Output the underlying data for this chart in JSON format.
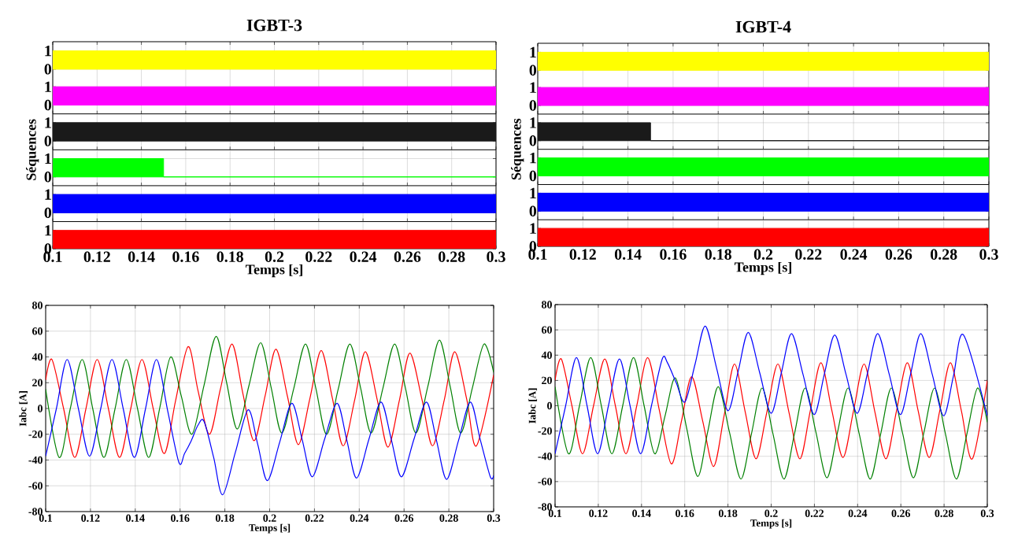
{
  "chart_data": [
    {
      "type": "area",
      "title": "IGBT-3",
      "xlim": [
        0.1,
        0.3
      ],
      "xticks": [
        0.1,
        0.12,
        0.14,
        0.16,
        0.18,
        0.2,
        0.22,
        0.24,
        0.26,
        0.28,
        0.3
      ],
      "ylim": [
        -0.48,
        1.5
      ],
      "yticks": [
        0,
        1
      ],
      "grid": true,
      "tick_labels": "y",
      "series": [
        {
          "color": "#ffff00",
          "x": [
            0.1,
            0.3
          ],
          "values": [
            1,
            1
          ]
        }
      ]
    },
    {
      "type": "area",
      "xlim": [
        0.1,
        0.3
      ],
      "xticks": [
        0.1,
        0.12,
        0.14,
        0.16,
        0.18,
        0.2,
        0.22,
        0.24,
        0.26,
        0.28,
        0.3
      ],
      "ylim": [
        -0.48,
        1.48
      ],
      "yticks": [
        0,
        1
      ],
      "grid": true,
      "tick_labels": "y",
      "series": [
        {
          "color": "#ff00ff",
          "x": [
            0.1,
            0.3
          ],
          "values": [
            1,
            1
          ]
        }
      ]
    },
    {
      "type": "area",
      "ylabel": "Séquences",
      "xlim": [
        0.1,
        0.3
      ],
      "xticks": [
        0.1,
        0.12,
        0.14,
        0.16,
        0.18,
        0.2,
        0.22,
        0.24,
        0.26,
        0.28,
        0.3
      ],
      "ylim": [
        -0.48,
        1.48
      ],
      "yticks": [
        0,
        1
      ],
      "grid": true,
      "tick_labels": "y",
      "series": [
        {
          "color": "#1a1a1a",
          "x": [
            0.1,
            0.3
          ],
          "values": [
            1,
            1
          ]
        }
      ]
    },
    {
      "type": "area",
      "xlim": [
        0.1,
        0.3
      ],
      "xticks": [
        0.1,
        0.12,
        0.14,
        0.16,
        0.18,
        0.2,
        0.22,
        0.24,
        0.26,
        0.28,
        0.3
      ],
      "ylim": [
        -0.48,
        1.48
      ],
      "yticks": [
        0,
        1
      ],
      "grid": true,
      "tick_labels": "y",
      "series": [
        {
          "color": "#00ff00",
          "x": [
            0.1,
            0.15,
            0.15,
            0.3
          ],
          "values": [
            1,
            1,
            0,
            0
          ]
        }
      ]
    },
    {
      "type": "area",
      "xlim": [
        0.1,
        0.3
      ],
      "xticks": [
        0.1,
        0.12,
        0.14,
        0.16,
        0.18,
        0.2,
        0.22,
        0.24,
        0.26,
        0.28,
        0.3
      ],
      "ylim": [
        -0.48,
        1.48
      ],
      "yticks": [
        0,
        1
      ],
      "grid": true,
      "tick_labels": "y",
      "series": [
        {
          "color": "#0000ff",
          "x": [
            0.1,
            0.3
          ],
          "values": [
            1,
            1
          ]
        }
      ]
    },
    {
      "type": "area",
      "xlabel": "Temps [s]",
      "xlim": [
        0.1,
        0.3
      ],
      "xticks": [
        0.1,
        0.12,
        0.14,
        0.16,
        0.18,
        0.2,
        0.22,
        0.24,
        0.26,
        0.28,
        0.3
      ],
      "ylim": [
        0,
        1.48
      ],
      "yticks": [
        0,
        1
      ],
      "grid": true,
      "series": [
        {
          "color": "#ff0000",
          "x": [
            0.1,
            0.3
          ],
          "values": [
            1,
            1
          ]
        }
      ]
    },
    {
      "type": "area",
      "title": "IGBT-4",
      "xlim": [
        0.1,
        0.3
      ],
      "xticks": [
        0.1,
        0.12,
        0.14,
        0.16,
        0.18,
        0.2,
        0.22,
        0.24,
        0.26,
        0.28,
        0.3
      ],
      "ylim": [
        -0.48,
        1.5
      ],
      "yticks": [
        0,
        1
      ],
      "grid": true,
      "tick_labels": "y",
      "series": [
        {
          "color": "#ffff00",
          "x": [
            0.1,
            0.3
          ],
          "values": [
            1,
            1
          ]
        }
      ]
    },
    {
      "type": "area",
      "xlim": [
        0.1,
        0.3
      ],
      "xticks": [
        0.1,
        0.12,
        0.14,
        0.16,
        0.18,
        0.2,
        0.22,
        0.24,
        0.26,
        0.28,
        0.3
      ],
      "ylim": [
        -0.48,
        1.48
      ],
      "yticks": [
        0,
        1
      ],
      "grid": true,
      "tick_labels": "y",
      "series": [
        {
          "color": "#ff00ff",
          "x": [
            0.1,
            0.3
          ],
          "values": [
            1,
            1
          ]
        }
      ]
    },
    {
      "type": "area",
      "ylabel": "Séquences",
      "xlim": [
        0.1,
        0.3
      ],
      "xticks": [
        0.1,
        0.12,
        0.14,
        0.16,
        0.18,
        0.2,
        0.22,
        0.24,
        0.26,
        0.28,
        0.3
      ],
      "ylim": [
        -0.48,
        1.48
      ],
      "yticks": [
        0,
        1
      ],
      "grid": true,
      "tick_labels": "y",
      "series": [
        {
          "color": "#1a1a1a",
          "x": [
            0.1,
            0.15,
            0.15,
            0.3
          ],
          "values": [
            1,
            1,
            0,
            0
          ]
        }
      ]
    },
    {
      "type": "area",
      "xlim": [
        0.1,
        0.3
      ],
      "xticks": [
        0.1,
        0.12,
        0.14,
        0.16,
        0.18,
        0.2,
        0.22,
        0.24,
        0.26,
        0.28,
        0.3
      ],
      "ylim": [
        -0.48,
        1.48
      ],
      "yticks": [
        0,
        1
      ],
      "grid": true,
      "tick_labels": "y",
      "series": [
        {
          "color": "#00ff00",
          "x": [
            0.1,
            0.3
          ],
          "values": [
            1,
            1
          ]
        }
      ]
    },
    {
      "type": "area",
      "xlim": [
        0.1,
        0.3
      ],
      "xticks": [
        0.1,
        0.12,
        0.14,
        0.16,
        0.18,
        0.2,
        0.22,
        0.24,
        0.26,
        0.28,
        0.3
      ],
      "ylim": [
        -0.48,
        1.48
      ],
      "yticks": [
        0,
        1
      ],
      "grid": true,
      "tick_labels": "y",
      "series": [
        {
          "color": "#0000ff",
          "x": [
            0.1,
            0.3
          ],
          "values": [
            1,
            1
          ]
        }
      ]
    },
    {
      "type": "area",
      "xlabel": "Temps [s]",
      "xlim": [
        0.1,
        0.3
      ],
      "xticks": [
        0.1,
        0.12,
        0.14,
        0.16,
        0.18,
        0.2,
        0.22,
        0.24,
        0.26,
        0.28,
        0.3
      ],
      "ylim": [
        0,
        1.48
      ],
      "yticks": [
        0,
        1
      ],
      "grid": true,
      "series": [
        {
          "color": "#ff0000",
          "x": [
            0.1,
            0.3
          ],
          "values": [
            1,
            1
          ]
        }
      ]
    },
    {
      "type": "line",
      "xlabel": "Temps [s]",
      "ylabel": "Iabc [A]",
      "xlim": [
        0.1,
        0.3
      ],
      "xticks": [
        0.1,
        0.12,
        0.14,
        0.16,
        0.18,
        0.2,
        0.22,
        0.24,
        0.26,
        0.28,
        0.3
      ],
      "ylim": [
        -80,
        80
      ],
      "yticks": [
        -80,
        -60,
        -40,
        -20,
        0,
        20,
        40,
        60,
        80
      ],
      "grid": true,
      "series": [
        {
          "color": "#ff0000",
          "x": [
            0.1,
            0.1028,
            0.108,
            0.113,
            0.118,
            0.123,
            0.128,
            0.133,
            0.138,
            0.143,
            0.148,
            0.153,
            0.158,
            0.1636,
            0.168,
            0.1731,
            0.178,
            0.1832,
            0.188,
            0.193,
            0.198,
            0.2028,
            0.208,
            0.2128,
            0.218,
            0.223,
            0.228,
            0.2328,
            0.238,
            0.2427,
            0.248,
            0.2528,
            0.258,
            0.2626,
            0.268,
            0.2727,
            0.278,
            0.2826,
            0.288,
            0.2923,
            0.3
          ],
          "values": [
            22,
            38,
            0,
            -38,
            0,
            38,
            0,
            -38,
            0,
            38,
            0,
            -35,
            6,
            48,
            14,
            -20,
            15,
            50,
            12,
            -25,
            10,
            46,
            9,
            -28,
            8,
            45,
            8,
            -29,
            7,
            44,
            7,
            -30,
            7,
            43,
            7,
            -29,
            7,
            44,
            7,
            -29,
            26
          ]
        },
        {
          "color": "#008000",
          "x": [
            0.1,
            0.106,
            0.111,
            0.1163,
            0.121,
            0.126,
            0.131,
            0.136,
            0.141,
            0.146,
            0.151,
            0.1558,
            0.1605,
            0.1653,
            0.1707,
            0.1761,
            0.1808,
            0.1855,
            0.1908,
            0.196,
            0.2007,
            0.2054,
            0.2107,
            0.216,
            0.2207,
            0.2254,
            0.2306,
            0.2358,
            0.2406,
            0.2453,
            0.2506,
            0.2558,
            0.2606,
            0.2653,
            0.2706,
            0.2758,
            0.2806,
            0.2853,
            0.2905,
            0.2957,
            0.3
          ],
          "values": [
            15,
            -38,
            0,
            38,
            0,
            -38,
            0,
            38,
            0,
            -38,
            1,
            40,
            10,
            -20,
            18,
            56,
            20,
            -16,
            18,
            51,
            16,
            -19,
            15,
            50,
            15,
            -20,
            15,
            50,
            16,
            -19,
            16,
            50,
            16,
            -19,
            17,
            53,
            17,
            -19,
            16,
            50,
            28
          ]
        },
        {
          "color": "#0000ff",
          "x": [
            0.1,
            0.1048,
            0.1096,
            0.1146,
            0.1196,
            0.1246,
            0.1296,
            0.1346,
            0.1396,
            0.1446,
            0.1495,
            0.1545,
            0.1595,
            0.162,
            0.165,
            0.168,
            0.1707,
            0.175,
            0.179,
            0.1847,
            0.1904,
            0.1947,
            0.199,
            0.2045,
            0.2099,
            0.2145,
            0.219,
            0.2245,
            0.2301,
            0.2345,
            0.2388,
            0.2443,
            0.2497,
            0.2543,
            0.2588,
            0.2644,
            0.27,
            0.2745,
            0.279,
            0.2843,
            0.2896,
            0.294,
            0.2985,
            0.3
          ],
          "values": [
            -37,
            0,
            38,
            0,
            -37,
            0,
            38,
            0,
            -38,
            0,
            38,
            -2,
            -42,
            -35,
            -25,
            -13,
            -10,
            -38,
            -67,
            -34,
            -1,
            -28,
            -56,
            -26,
            4,
            -24,
            -53,
            -24,
            4,
            -25,
            -54,
            -24,
            5,
            -24,
            -53,
            -24,
            5,
            -25,
            -55,
            -25,
            5,
            -24,
            -53,
            -52
          ]
        }
      ]
    },
    {
      "type": "line",
      "xlabel": "Temps [s]",
      "ylabel": "Iabc [A]",
      "xlim": [
        0.1,
        0.3
      ],
      "xticks": [
        0.1,
        0.12,
        0.14,
        0.16,
        0.18,
        0.2,
        0.22,
        0.24,
        0.26,
        0.28,
        0.3
      ],
      "ylim": [
        -80,
        80
      ],
      "yticks": [
        -80,
        -60,
        -40,
        -20,
        0,
        20,
        40,
        60,
        80
      ],
      "grid": true,
      "series": [
        {
          "color": "#ff0000",
          "x": [
            0.1,
            0.1029,
            0.1078,
            0.1127,
            0.1178,
            0.123,
            0.1279,
            0.1328,
            0.1378,
            0.1429,
            0.1483,
            0.1538,
            0.1585,
            0.1632,
            0.1683,
            0.1734,
            0.1782,
            0.183,
            0.188,
            0.193,
            0.198,
            0.2031,
            0.2082,
            0.2133,
            0.2181,
            0.223,
            0.2281,
            0.2332,
            0.2381,
            0.243,
            0.248,
            0.2531,
            0.258,
            0.263,
            0.268,
            0.2731,
            0.278,
            0.2829,
            0.288,
            0.2931,
            0.3
          ],
          "values": [
            20,
            37,
            0,
            -38,
            0,
            37,
            0,
            -38,
            0,
            38,
            -4,
            -46,
            -12,
            23,
            -12,
            -48,
            -8,
            33,
            -5,
            -42,
            -5,
            33,
            -5,
            -42,
            -4,
            34,
            -4,
            -41,
            -4,
            33,
            -5,
            -42,
            -4,
            34,
            -4,
            -41,
            -4,
            34,
            -4,
            -42,
            20
          ]
        },
        {
          "color": "#008000",
          "x": [
            0.1,
            0.1062,
            0.1113,
            0.1165,
            0.1214,
            0.1263,
            0.1313,
            0.1363,
            0.1412,
            0.1461,
            0.1509,
            0.1557,
            0.1608,
            0.166,
            0.1707,
            0.1755,
            0.1807,
            0.186,
            0.1909,
            0.1958,
            0.2008,
            0.2059,
            0.2108,
            0.2157,
            0.2207,
            0.2258,
            0.2307,
            0.2356,
            0.2407,
            0.2458,
            0.2507,
            0.2556,
            0.2607,
            0.2658,
            0.2707,
            0.2756,
            0.2806,
            0.2857,
            0.2906,
            0.2955,
            0.3
          ],
          "values": [
            15,
            -38,
            0,
            38,
            0,
            -38,
            0,
            38,
            0,
            -38,
            -8,
            22,
            -17,
            -56,
            -20,
            15,
            -21,
            -58,
            -22,
            14,
            -22,
            -58,
            -22,
            14,
            -21,
            -57,
            -21,
            14,
            -22,
            -58,
            -22,
            14,
            -21,
            -57,
            -21,
            14,
            -22,
            -58,
            -22,
            14,
            -13
          ]
        },
        {
          "color": "#0000ff",
          "x": [
            0.1,
            0.1049,
            0.1099,
            0.1148,
            0.1197,
            0.1247,
            0.1298,
            0.1347,
            0.1396,
            0.1446,
            0.1496,
            0.152,
            0.1561,
            0.1601,
            0.1648,
            0.1695,
            0.1747,
            0.18,
            0.1847,
            0.1894,
            0.1947,
            0.2,
            0.2047,
            0.2094,
            0.2147,
            0.2199,
            0.2246,
            0.2294,
            0.2346,
            0.2398,
            0.2446,
            0.2493,
            0.2546,
            0.2598,
            0.2645,
            0.2692,
            0.2745,
            0.2798,
            0.2844,
            0.289,
            0.3
          ],
          "values": [
            -38,
            0,
            38,
            0,
            -38,
            0,
            37,
            0,
            -38,
            0,
            37,
            34,
            18,
            3,
            33,
            63,
            30,
            -4,
            27,
            58,
            26,
            -6,
            26,
            57,
            25,
            -7,
            25,
            56,
            25,
            -6,
            26,
            57,
            25,
            -7,
            25,
            57,
            25,
            -8,
            24,
            56,
            -8
          ]
        }
      ]
    }
  ]
}
